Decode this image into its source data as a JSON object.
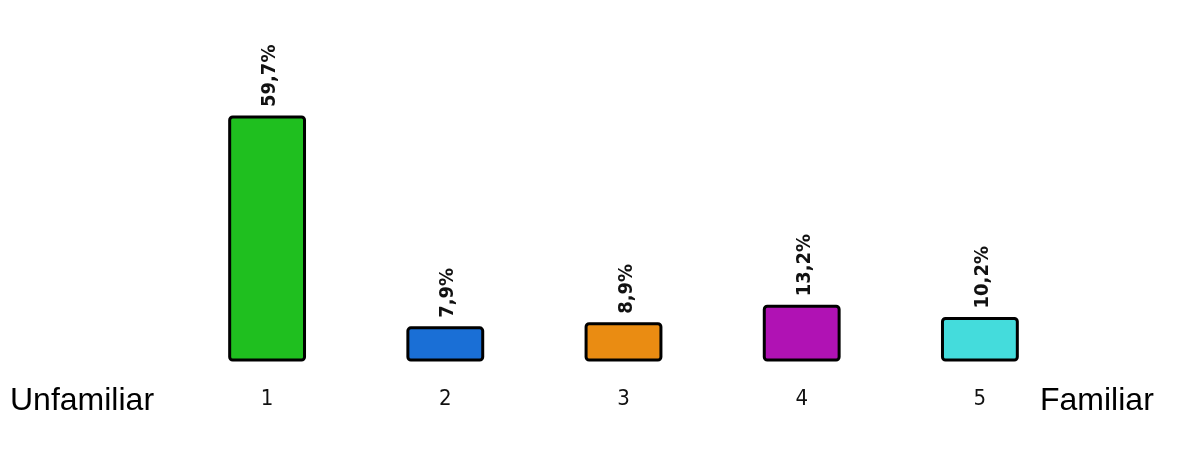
{
  "chart_data": {
    "type": "bar",
    "categories": [
      "1",
      "2",
      "3",
      "4",
      "5"
    ],
    "values": [
      59.7,
      7.9,
      8.9,
      13.2,
      10.2
    ],
    "colors": [
      "#1fbf1f",
      "#1a6fd6",
      "#ea8c12",
      "#b012b4",
      "#44dcdc"
    ],
    "value_labels": [
      "59,7%",
      "7,9%",
      "8,9%",
      "13,2%",
      "10,2%"
    ],
    "annotations": [
      "Unfamiliar",
      "Familiar"
    ]
  }
}
